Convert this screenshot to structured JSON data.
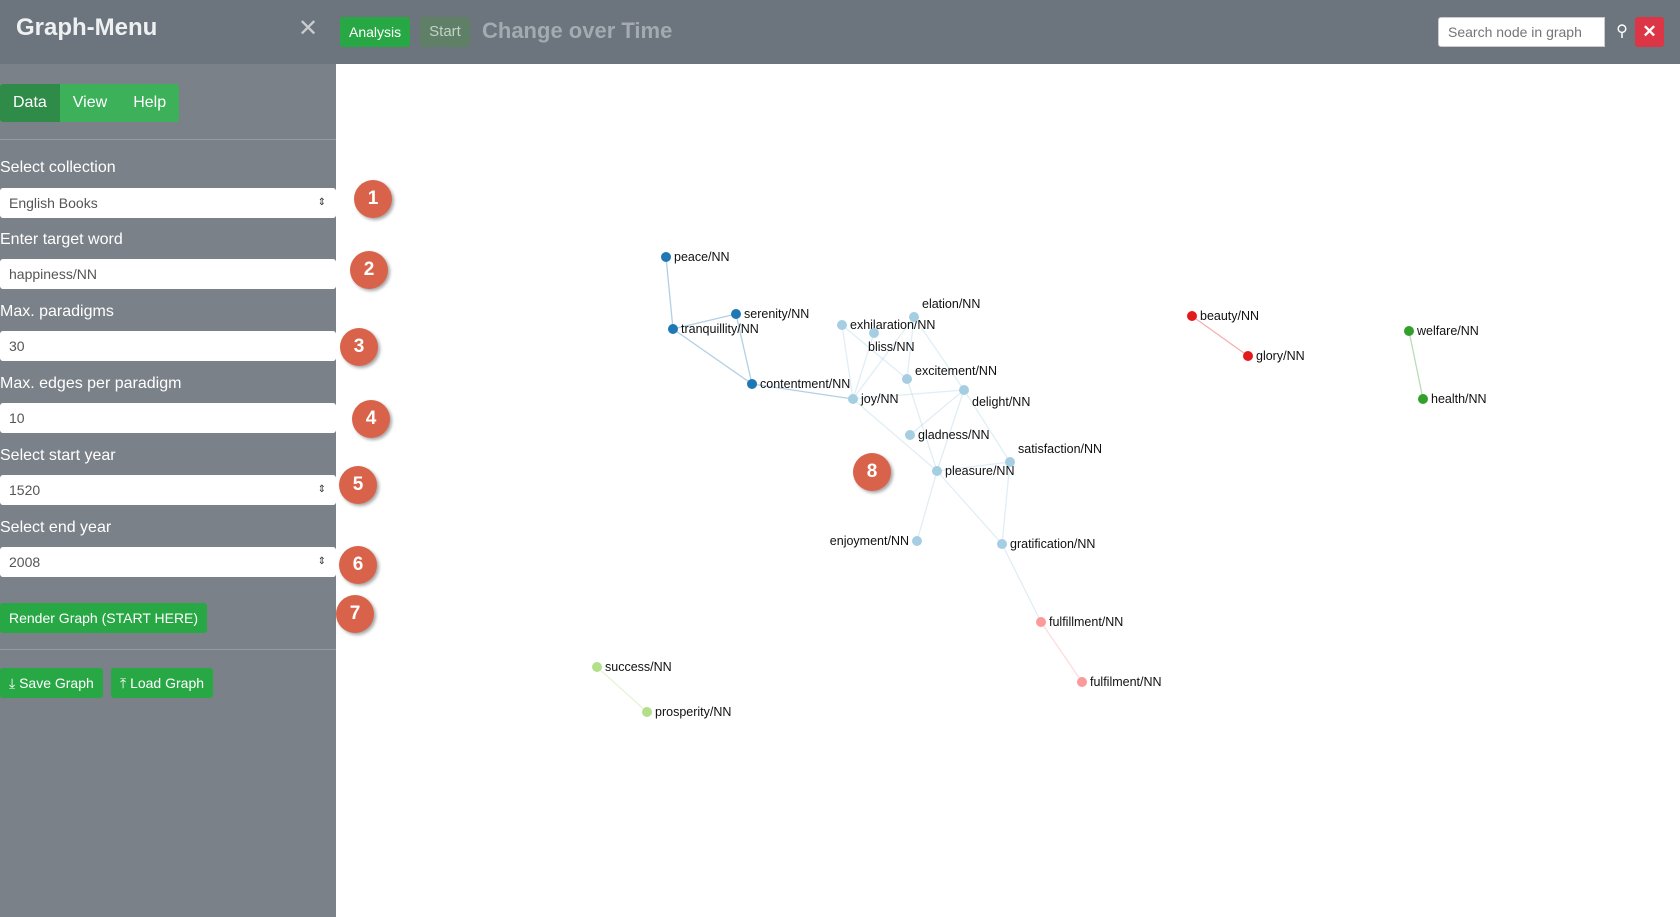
{
  "header": {
    "background_title": "Change over Time",
    "start_label": "Start",
    "analysis_label": "Analysis",
    "search_placeholder": "Search node in graph",
    "search_icon": "search-icon",
    "close_icon": "close-icon"
  },
  "sidebar": {
    "title": "Graph-Menu",
    "close_icon": "close-icon",
    "tabs": [
      {
        "label": "Data",
        "active": true
      },
      {
        "label": "View",
        "active": false
      },
      {
        "label": "Help",
        "active": false
      }
    ],
    "collection_label": "Select collection",
    "collection_value": "English Books",
    "target_label": "Enter target word",
    "target_value": "happiness/NN",
    "paradigms_label": "Max. paradigms",
    "paradigms_value": "30",
    "edges_label": "Max. edges per paradigm",
    "edges_value": "10",
    "start_label": "Select start year",
    "start_value": "1520",
    "end_label": "Select end year",
    "end_value": "2008",
    "render_label": "Render Graph (START HERE)",
    "save_label": "Save Graph",
    "load_label": "Load Graph"
  },
  "markers": [
    "1",
    "2",
    "3",
    "4",
    "5",
    "6",
    "7",
    "8"
  ],
  "colors": {
    "dark_blue": "#1f78b4",
    "light_blue": "#a6cee3",
    "red": "#e31a1c",
    "green": "#33a02c",
    "pink": "#fb9a99",
    "light_green": "#b2df8a"
  },
  "graph": {
    "nodes": [
      {
        "id": "peace/NN",
        "color": "dark_blue"
      },
      {
        "id": "serenity/NN",
        "color": "dark_blue"
      },
      {
        "id": "tranquillity/NN",
        "color": "dark_blue"
      },
      {
        "id": "contentment/NN",
        "color": "dark_blue"
      },
      {
        "id": "joy/NN",
        "color": "light_blue"
      },
      {
        "id": "exhilaration/NN",
        "color": "light_blue"
      },
      {
        "id": "bliss/NN",
        "color": "light_blue"
      },
      {
        "id": "elation/NN",
        "color": "light_blue"
      },
      {
        "id": "excitement/NN",
        "color": "light_blue"
      },
      {
        "id": "delight/NN",
        "color": "light_blue"
      },
      {
        "id": "gladness/NN",
        "color": "light_blue"
      },
      {
        "id": "satisfaction/NN",
        "color": "light_blue"
      },
      {
        "id": "pleasure/NN",
        "color": "light_blue"
      },
      {
        "id": "enjoyment/NN",
        "color": "light_blue"
      },
      {
        "id": "gratification/NN",
        "color": "light_blue"
      },
      {
        "id": "fulfillment/NN",
        "color": "pink"
      },
      {
        "id": "fulfilment/NN",
        "color": "pink"
      },
      {
        "id": "success/NN",
        "color": "light_green"
      },
      {
        "id": "prosperity/NN",
        "color": "light_green"
      },
      {
        "id": "beauty/NN",
        "color": "red"
      },
      {
        "id": "glory/NN",
        "color": "red"
      },
      {
        "id": "welfare/NN",
        "color": "green"
      },
      {
        "id": "health/NN",
        "color": "green"
      }
    ],
    "edges": [
      [
        "peace/NN",
        "tranquillity/NN"
      ],
      [
        "tranquillity/NN",
        "serenity/NN"
      ],
      [
        "tranquillity/NN",
        "contentment/NN"
      ],
      [
        "serenity/NN",
        "contentment/NN"
      ],
      [
        "contentment/NN",
        "joy/NN"
      ],
      [
        "joy/NN",
        "exhilaration/NN"
      ],
      [
        "joy/NN",
        "bliss/NN"
      ],
      [
        "joy/NN",
        "elation/NN"
      ],
      [
        "joy/NN",
        "delight/NN"
      ],
      [
        "joy/NN",
        "pleasure/NN"
      ],
      [
        "exhilaration/NN",
        "excitement/NN"
      ],
      [
        "elation/NN",
        "excitement/NN"
      ],
      [
        "elation/NN",
        "delight/NN"
      ],
      [
        "excitement/NN",
        "pleasure/NN"
      ],
      [
        "delight/NN",
        "gladness/NN"
      ],
      [
        "delight/NN",
        "pleasure/NN"
      ],
      [
        "delight/NN",
        "satisfaction/NN"
      ],
      [
        "pleasure/NN",
        "satisfaction/NN"
      ],
      [
        "pleasure/NN",
        "enjoyment/NN"
      ],
      [
        "pleasure/NN",
        "gratification/NN"
      ],
      [
        "satisfaction/NN",
        "gratification/NN"
      ],
      [
        "gratification/NN",
        "fulfillment/NN"
      ],
      [
        "fulfillment/NN",
        "fulfilment/NN"
      ],
      [
        "success/NN",
        "prosperity/NN"
      ],
      [
        "beauty/NN",
        "glory/NN"
      ],
      [
        "welfare/NN",
        "health/NN"
      ]
    ]
  }
}
